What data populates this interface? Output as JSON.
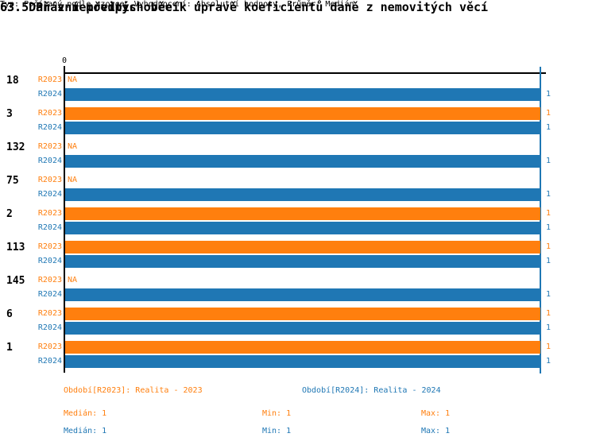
{
  "header": {
    "title": "63. Daň z nemovitých věcí",
    "subtitle": "63.5 Právní předpis obce k úpravě koeficientů daně z nemovitých věcí",
    "meta": "Typ: Počítaný podle vzorce, Vyhodnocení: Absolutní hodnoty, Průměr: Medián"
  },
  "colors": {
    "r2023": "#FF7F0E",
    "r2024": "#1F77B4",
    "axis": "#000000",
    "background": "#FFFFFF"
  },
  "chart_data": {
    "type": "bar",
    "orientation": "horizontal",
    "title": "",
    "xlabel": "",
    "ylabel": "",
    "xlim": [
      0,
      1
    ],
    "x_tick_labels": [
      "0"
    ],
    "zero_tick": "0",
    "grid": "value-1-line",
    "legend_position": "bottom",
    "na_text": "NA",
    "categories": [
      "18",
      "3",
      "132",
      "75",
      "2",
      "113",
      "145",
      "6",
      "1"
    ],
    "series": [
      {
        "name": "R2023",
        "color": "#FF7F0E",
        "values": [
          null,
          1,
          null,
          null,
          1,
          1,
          null,
          1,
          1
        ]
      },
      {
        "name": "R2024",
        "color": "#1F77B4",
        "values": [
          1,
          1,
          1,
          1,
          1,
          1,
          1,
          1,
          1
        ]
      }
    ]
  },
  "legend": {
    "r2023": "Období[R2023]: Realita - 2023",
    "r2024": "Období[R2024]: Realita - 2024"
  },
  "stats": {
    "r2023": {
      "median": "Medián: 1",
      "min": "Min: 1",
      "max": "Max: 1"
    },
    "r2024": {
      "median": "Medián: 1",
      "min": "Min: 1",
      "max": "Max: 1"
    }
  }
}
